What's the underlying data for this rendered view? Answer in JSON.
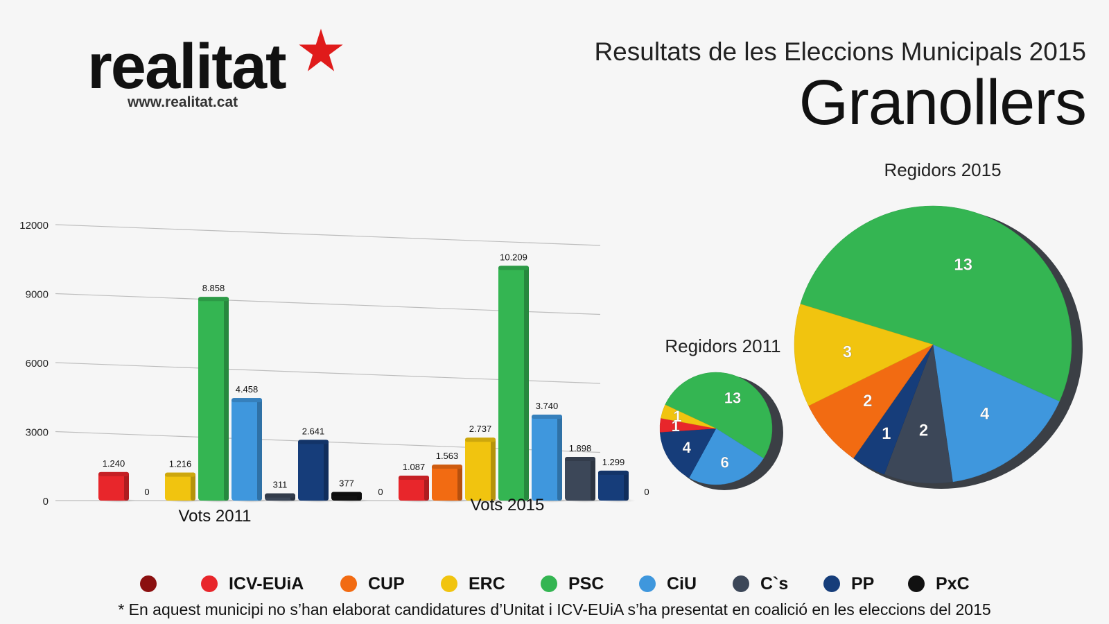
{
  "header": {
    "brand": "realitat",
    "brand_url": "www.realitat.cat",
    "subtitle": "Resultats de les Eleccions Municipals 2015",
    "city": "Granollers"
  },
  "colors": {
    "Unitat": "#8b1010",
    "ICV-EUiA": "#e8262b",
    "CUP": "#f26b12",
    "ERC": "#f1c40f",
    "PSC": "#34b552",
    "CiU": "#3f97dd",
    "C`s": "#3c4758",
    "PP": "#163d7a",
    "PxC": "#111111"
  },
  "chart_data": [
    {
      "type": "bar",
      "title": "",
      "ylim": [
        0,
        12000
      ],
      "yticks": [
        "0",
        "3000",
        "6000",
        "9000",
        "12000"
      ],
      "categories": [
        "Vots 2011",
        "Vots 2015"
      ],
      "series": [
        {
          "name": "Unitat",
          "values": [
            0,
            0
          ],
          "labels": [
            "",
            "0"
          ]
        },
        {
          "name": "ICV-EUiA",
          "values": [
            1240,
            1087
          ],
          "labels": [
            "1.240",
            "1.087"
          ]
        },
        {
          "name": "CUP",
          "values": [
            0,
            1563
          ],
          "labels": [
            "0",
            "1.563"
          ]
        },
        {
          "name": "ERC",
          "values": [
            1216,
            2737
          ],
          "labels": [
            "1.216",
            "2.737"
          ]
        },
        {
          "name": "PSC",
          "values": [
            8858,
            10209
          ],
          "labels": [
            "8.858",
            "10.209"
          ]
        },
        {
          "name": "CiU",
          "values": [
            4458,
            3740
          ],
          "labels": [
            "4.458",
            "3.740"
          ]
        },
        {
          "name": "C`s",
          "values": [
            311,
            1898
          ],
          "labels": [
            "311",
            "1.898"
          ]
        },
        {
          "name": "PP",
          "values": [
            2641,
            1299
          ],
          "labels": [
            "2.641",
            "1.299"
          ]
        },
        {
          "name": "PxC",
          "values": [
            377,
            0
          ],
          "labels": [
            "377",
            "0"
          ]
        }
      ]
    },
    {
      "type": "pie",
      "title": "Regidors 2011",
      "slices": [
        {
          "name": "PSC",
          "value": 13,
          "label": "13"
        },
        {
          "name": "CiU",
          "value": 6,
          "label": "6"
        },
        {
          "name": "PP",
          "value": 4,
          "label": "4"
        },
        {
          "name": "ICV-EUiA",
          "value": 1,
          "label": "1"
        },
        {
          "name": "ERC",
          "value": 1,
          "label": "1"
        }
      ]
    },
    {
      "type": "pie",
      "title": "Regidors 2015",
      "slices": [
        {
          "name": "PSC",
          "value": 13,
          "label": "13"
        },
        {
          "name": "CiU",
          "value": 4,
          "label": "4"
        },
        {
          "name": "C`s",
          "value": 2,
          "label": "2"
        },
        {
          "name": "PP",
          "value": 1,
          "label": "1"
        },
        {
          "name": "CUP",
          "value": 2,
          "label": "2"
        },
        {
          "name": "ERC",
          "value": 3,
          "label": "3"
        }
      ]
    }
  ],
  "legend": [
    {
      "name": "Unitat",
      "label": ""
    },
    {
      "name": "ICV-EUiA",
      "label": "ICV-EUiA"
    },
    {
      "name": "CUP",
      "label": "CUP"
    },
    {
      "name": "ERC",
      "label": "ERC"
    },
    {
      "name": "PSC",
      "label": "PSC"
    },
    {
      "name": "CiU",
      "label": "CiU"
    },
    {
      "name": "C`s",
      "label": "C`s"
    },
    {
      "name": "PP",
      "label": "PP"
    },
    {
      "name": "PxC",
      "label": "PxC"
    }
  ],
  "footnote": "* En aquest municipi no s’han elaborat candidatures d’Unitat i ICV-EUiA s’ha presentat en coalició en les eleccions del 2015"
}
